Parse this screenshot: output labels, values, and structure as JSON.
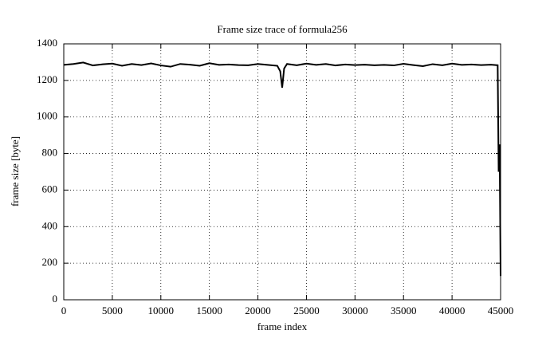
{
  "chart_data": {
    "type": "line",
    "title": "Frame size trace of formula256",
    "x_label": "frame index",
    "y_label": "frame size [byte]",
    "x": [
      0,
      1000,
      2000,
      3000,
      4000,
      5000,
      6000,
      7000,
      8000,
      9000,
      10000,
      11000,
      12000,
      13000,
      14000,
      15000,
      16000,
      17000,
      18000,
      19000,
      20000,
      21000,
      22000,
      22300,
      22500,
      22700,
      23000,
      24000,
      25000,
      26000,
      27000,
      28000,
      29000,
      30000,
      31000,
      32000,
      33000,
      34000,
      35000,
      36000,
      37000,
      38000,
      39000,
      40000,
      41000,
      42000,
      43000,
      44000,
      44700,
      44800,
      44900,
      45000
    ],
    "series": [
      {
        "color": "#000000",
        "values": [
          1285,
          1290,
          1298,
          1282,
          1288,
          1292,
          1280,
          1290,
          1284,
          1293,
          1282,
          1275,
          1290,
          1286,
          1280,
          1294,
          1285,
          1287,
          1284,
          1283,
          1290,
          1285,
          1280,
          1250,
          1160,
          1265,
          1290,
          1283,
          1292,
          1285,
          1290,
          1282,
          1287,
          1284,
          1286,
          1283,
          1285,
          1282,
          1291,
          1284,
          1278,
          1289,
          1283,
          1292,
          1285,
          1287,
          1284,
          1286,
          1283,
          700,
          850,
          130
        ]
      }
    ],
    "xlim": [
      0,
      45000
    ],
    "xticks": [
      0,
      5000,
      10000,
      15000,
      20000,
      25000,
      30000,
      35000,
      40000,
      45000
    ],
    "ylim": [
      0,
      1400
    ],
    "yticks": [
      0,
      200,
      400,
      600,
      800,
      1000,
      1200,
      1400
    ],
    "grid": true
  }
}
